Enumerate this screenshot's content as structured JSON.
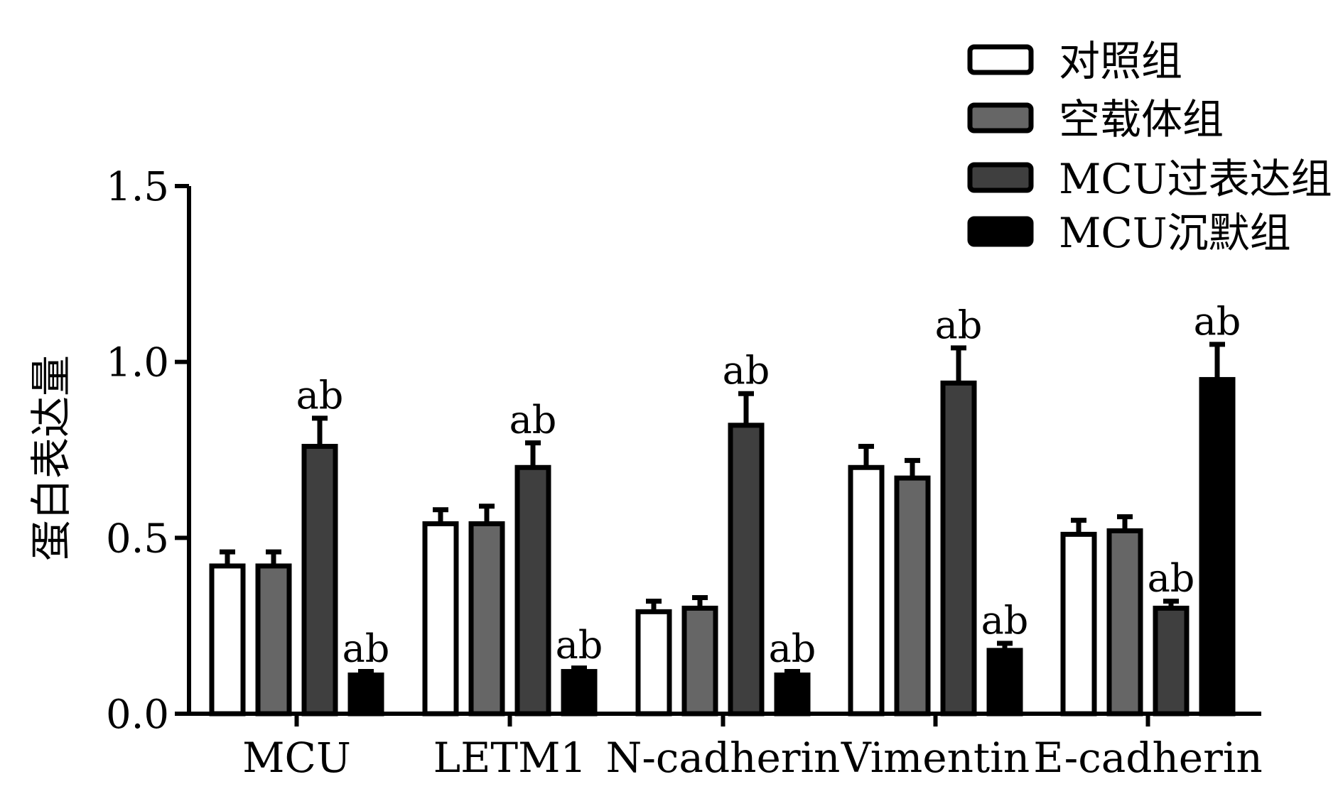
{
  "chart_data": {
    "type": "bar",
    "title": "",
    "xlabel": "",
    "ylabel": "蛋白表达量",
    "ylim": [
      0,
      1.5
    ],
    "yticks": [
      "0.0",
      "0.5",
      "1.0",
      "1.5"
    ],
    "grid": false,
    "legend_position": "top-right",
    "categories": [
      "MCU",
      "LETM1",
      "N-cadherin",
      "Vimentin",
      "E-cadherin"
    ],
    "series": [
      {
        "name": "对照组",
        "color": "#ffffff",
        "values": [
          0.42,
          0.54,
          0.29,
          0.7,
          0.51
        ],
        "errors": [
          0.04,
          0.04,
          0.03,
          0.06,
          0.04
        ],
        "labels": [
          "",
          "",
          "",
          "",
          ""
        ]
      },
      {
        "name": "空载体组",
        "color": "#666666",
        "values": [
          0.42,
          0.54,
          0.3,
          0.67,
          0.52
        ],
        "errors": [
          0.04,
          0.05,
          0.03,
          0.05,
          0.04
        ],
        "labels": [
          "",
          "",
          "",
          "",
          ""
        ]
      },
      {
        "name": "MCU过表达组",
        "color": "#3f3f3f",
        "values": [
          0.76,
          0.7,
          0.82,
          0.94,
          0.3
        ],
        "errors": [
          0.08,
          0.07,
          0.09,
          0.1,
          0.02
        ],
        "labels": [
          "ab",
          "ab",
          "ab",
          "ab",
          "ab"
        ]
      },
      {
        "name": "MCU沉默组",
        "color": "#000000",
        "values": [
          0.11,
          0.12,
          0.11,
          0.18,
          0.95
        ],
        "errors": [
          0.01,
          0.01,
          0.01,
          0.02,
          0.1
        ],
        "labels": [
          "ab",
          "ab",
          "ab",
          "ab",
          "ab"
        ]
      }
    ]
  }
}
